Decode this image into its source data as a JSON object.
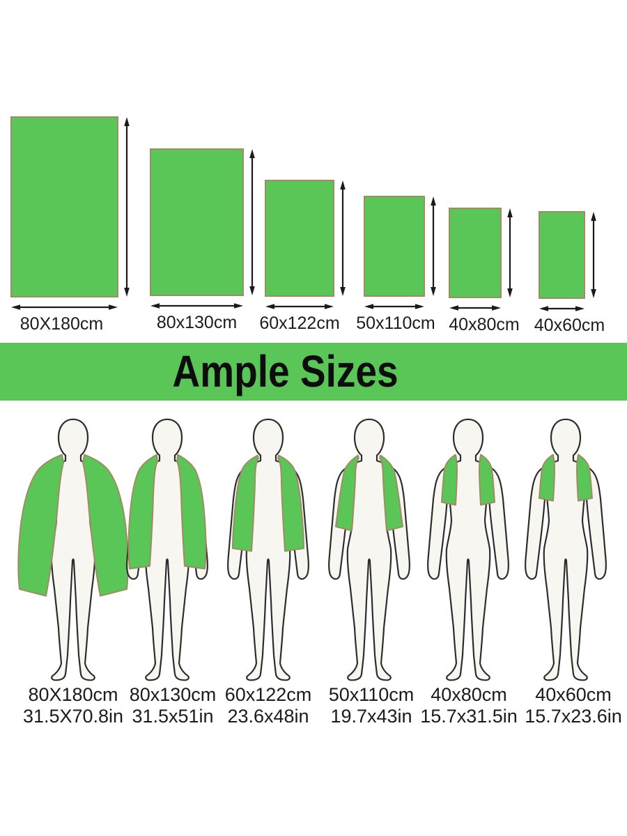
{
  "banner": {
    "label": "Ample Sizes"
  },
  "sizes": [
    {
      "cm": "80X180cm",
      "inch": "31.5X70.8in"
    },
    {
      "cm": "80x130cm",
      "inch": "31.5x51in"
    },
    {
      "cm": "60x122cm",
      "inch": "23.6x48in"
    },
    {
      "cm": "50x110cm",
      "inch": "19.7x43in"
    },
    {
      "cm": "40x80cm",
      "inch": "15.7x31.5in"
    },
    {
      "cm": "40x60cm",
      "inch": "15.7x23.6in"
    }
  ],
  "colors": {
    "towel_green": "#5AC657",
    "towel_border": "#A08B64",
    "figure_fill": "#F7F6F1",
    "figure_outline": "#2D2D2D",
    "arrow": "#1A1A1A",
    "banner_bg": "#5AC657",
    "label_text": "#1C1C1C"
  },
  "icons": {
    "vertical_dimension": "double-arrow-vertical-icon",
    "horizontal_dimension": "double-arrow-horizontal-icon"
  }
}
